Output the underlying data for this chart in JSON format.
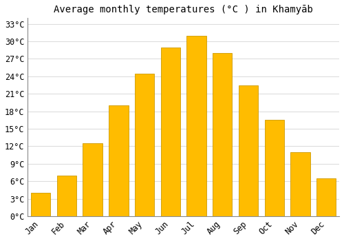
{
  "title": "Average monthly temperatures (°C ) in Khamyāb",
  "months": [
    "Jan",
    "Feb",
    "Mar",
    "Apr",
    "May",
    "Jun",
    "Jul",
    "Aug",
    "Sep",
    "Oct",
    "Nov",
    "Dec"
  ],
  "values": [
    4.0,
    7.0,
    12.5,
    19.0,
    24.5,
    29.0,
    31.0,
    28.0,
    22.5,
    16.5,
    11.0,
    6.5
  ],
  "bar_color": "#FFBC00",
  "bar_edge_color": "#CC9900",
  "background_color": "#FFFFFF",
  "plot_bg_color": "#FFFFFF",
  "grid_color": "#DDDDDD",
  "yticks": [
    0,
    3,
    6,
    9,
    12,
    15,
    18,
    21,
    24,
    27,
    30,
    33
  ],
  "ylim": [
    0,
    34
  ],
  "title_fontsize": 10,
  "tick_fontsize": 8.5,
  "bar_width": 0.75
}
